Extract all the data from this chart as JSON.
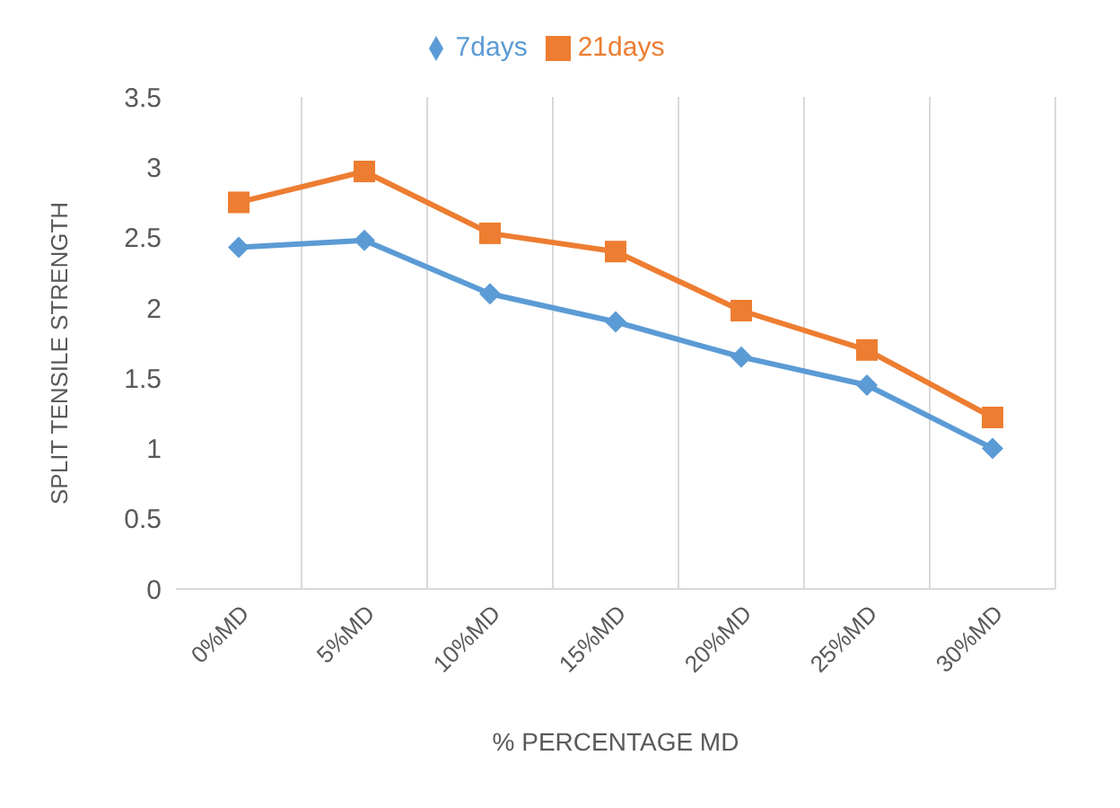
{
  "chart_data": {
    "type": "line",
    "xlabel": "% PERCENTAGE MD",
    "ylabel": "SPLIT TENSILE STRENGTH",
    "categories": [
      "0%MD",
      "5%MD",
      "10%MD",
      "15%MD",
      "20%MD",
      "25%MD",
      "30%MD"
    ],
    "series": [
      {
        "name": "7days",
        "color": "#5b9bd5",
        "marker": "diamond",
        "values": [
          2.43,
          2.48,
          2.1,
          1.9,
          1.65,
          1.45,
          1.0
        ]
      },
      {
        "name": "21days",
        "color": "#ed7d31",
        "marker": "square",
        "values": [
          2.75,
          2.97,
          2.53,
          2.4,
          1.98,
          1.7,
          1.22
        ]
      }
    ],
    "ylim": [
      0,
      3.5
    ],
    "yticks": [
      0,
      0.5,
      1,
      1.5,
      2,
      2.5,
      3,
      3.5
    ],
    "grid": "x",
    "legend": "top"
  }
}
